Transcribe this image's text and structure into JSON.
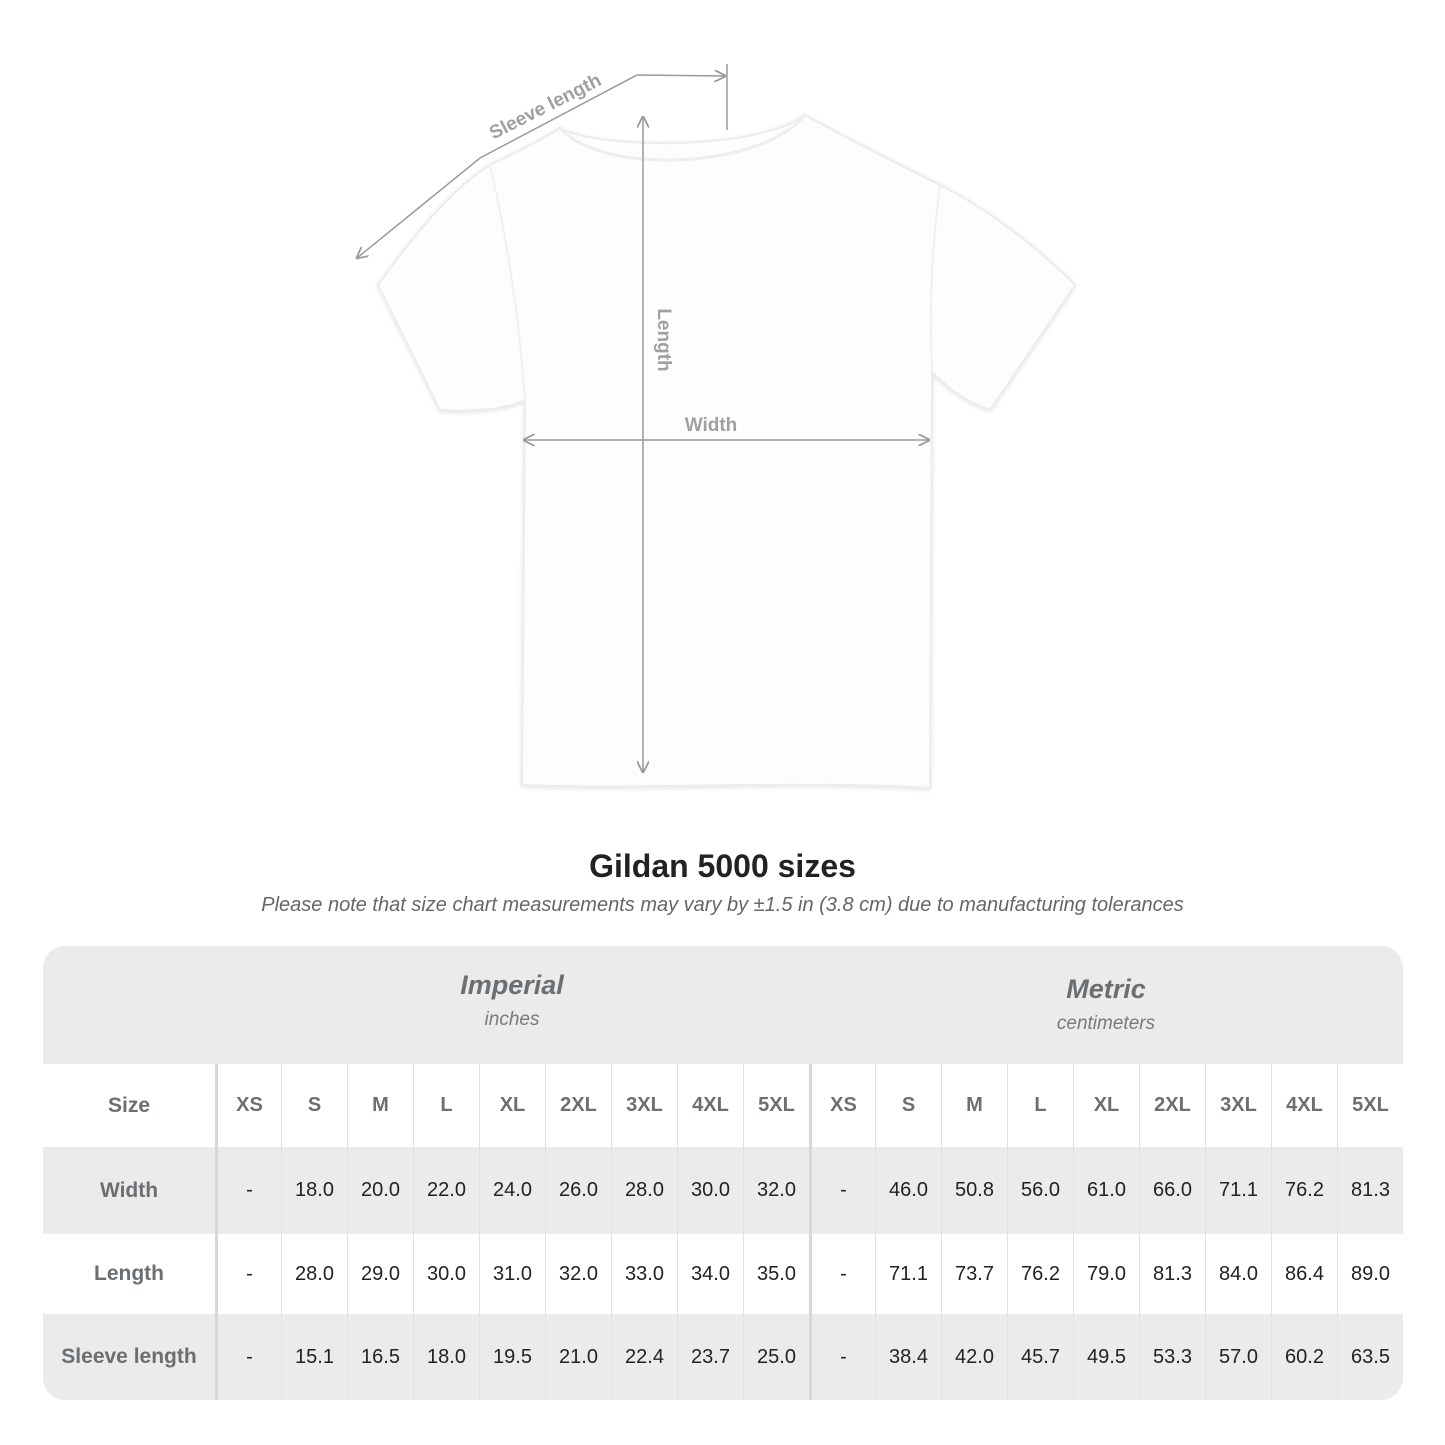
{
  "diagram": {
    "labels": {
      "sleeve": "Sleeve length",
      "length": "Length",
      "width": "Width"
    },
    "line_color": "#9a9a9a"
  },
  "heading": {
    "title": "Gildan 5000 sizes",
    "note": "Please note that size chart measurements may vary by ±1.5 in (3.8 cm) due to manufacturing tolerances"
  },
  "table": {
    "imperial": {
      "label": "Imperial",
      "unit": "inches"
    },
    "metric": {
      "label": "Metric",
      "unit": "centimeters"
    },
    "size_label": "Size",
    "sizes": [
      "XS",
      "S",
      "M",
      "L",
      "XL",
      "2XL",
      "3XL",
      "4XL",
      "5XL"
    ],
    "rows": [
      {
        "label": "Width",
        "imperial": [
          "-",
          "18.0",
          "20.0",
          "22.0",
          "24.0",
          "26.0",
          "28.0",
          "30.0",
          "32.0"
        ],
        "metric": [
          "-",
          "46.0",
          "50.8",
          "56.0",
          "61.0",
          "66.0",
          "71.1",
          "76.2",
          "81.3"
        ]
      },
      {
        "label": "Length",
        "imperial": [
          "-",
          "28.0",
          "29.0",
          "30.0",
          "31.0",
          "32.0",
          "33.0",
          "34.0",
          "35.0"
        ],
        "metric": [
          "-",
          "71.1",
          "73.7",
          "76.2",
          "79.0",
          "81.3",
          "84.0",
          "86.4",
          "89.0"
        ]
      },
      {
        "label": "Sleeve length",
        "imperial": [
          "-",
          "15.1",
          "16.5",
          "18.0",
          "19.5",
          "21.0",
          "22.4",
          "23.7",
          "25.0"
        ],
        "metric": [
          "-",
          "38.4",
          "42.0",
          "45.7",
          "49.5",
          "53.3",
          "57.0",
          "60.2",
          "63.5"
        ]
      }
    ],
    "colors": {
      "band": "#ebebeb",
      "header_text": "#6b6f72"
    }
  }
}
